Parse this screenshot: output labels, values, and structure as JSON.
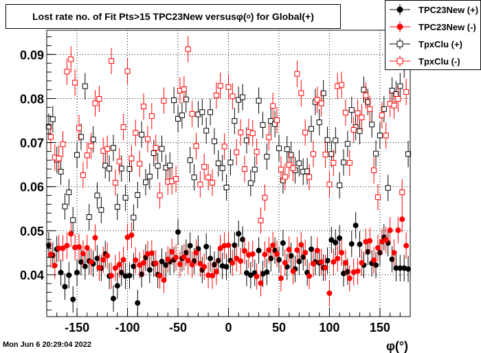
{
  "title_prefix": "Lost rate no. of Fit Pts>15 TPC23New versus ",
  "title_phi": "φ",
  "title_degree": "o",
  "title_suffix": ") for Global(+)",
  "footer": "Mon Jun  6 20:29:04 2022",
  "colors": {
    "black": "#000000",
    "red": "#ff0000"
  },
  "chart_data": {
    "type": "scatter",
    "xlabel": "φ(°)",
    "ylabel": "",
    "xlim": [
      -180,
      180
    ],
    "ylim": [
      0.0305,
      0.0955
    ],
    "x_ticks": [
      -150,
      -100,
      -50,
      0,
      50,
      100,
      150
    ],
    "y_ticks": [
      0.04,
      0.05,
      0.06,
      0.07,
      0.08,
      0.09
    ],
    "y_tick_labels": [
      "0.04",
      "0.05",
      "0.06",
      "0.07",
      "0.08",
      "0.09"
    ],
    "grid": true,
    "legend_position": "top-right",
    "series": [
      {
        "name": "TPC23New (+)",
        "marker": "filled-circle",
        "color": "#000000",
        "x": [
          -178,
          -174,
          -170,
          -166,
          -162,
          -158,
          -154,
          -150,
          -146,
          -142,
          -138,
          -134,
          -130,
          -126,
          -122,
          -118,
          -114,
          -110,
          -106,
          -102,
          -98,
          -94,
          -90,
          -86,
          -82,
          -78,
          -74,
          -70,
          -66,
          -62,
          -58,
          -54,
          -50,
          -46,
          -42,
          -38,
          -34,
          -30,
          -26,
          -22,
          -18,
          -14,
          -10,
          -6,
          -2,
          2,
          6,
          10,
          14,
          18,
          22,
          26,
          30,
          34,
          38,
          42,
          46,
          50,
          54,
          58,
          62,
          66,
          70,
          74,
          78,
          82,
          86,
          90,
          94,
          98,
          102,
          106,
          110,
          114,
          118,
          122,
          126,
          130,
          134,
          138,
          142,
          146,
          150,
          154,
          158,
          162,
          166,
          170,
          174,
          178
        ],
        "y": [
          0.0467,
          0.0444,
          0.0458,
          0.0405,
          0.0373,
          0.0399,
          0.0344,
          0.0405,
          0.0429,
          0.0419,
          0.0431,
          0.0425,
          0.0437,
          0.0415,
          0.0447,
          0.0397,
          0.0346,
          0.0375,
          0.0405,
          0.0397,
          0.0398,
          0.0419,
          0.0336,
          0.0401,
          0.0439,
          0.0411,
          0.0425,
          0.04,
          0.043,
          0.0422,
          0.043,
          0.0434,
          0.0497,
          0.0437,
          0.045,
          0.0466,
          0.0431,
          0.0459,
          0.0411,
          0.0464,
          0.0437,
          0.0423,
          0.0432,
          0.042,
          0.0418,
          0.0432,
          0.0467,
          0.0493,
          0.048,
          0.0404,
          0.0399,
          0.0404,
          0.0455,
          0.0402,
          0.0406,
          0.0437,
          0.0455,
          0.0434,
          0.0472,
          0.0418,
          0.0443,
          0.0413,
          0.043,
          0.044,
          0.0405,
          0.0458,
          0.0429,
          0.0427,
          0.0416,
          0.0432,
          0.0479,
          0.0473,
          0.0483,
          0.0403,
          0.0407,
          0.047,
          0.0512,
          0.0469,
          0.0422,
          0.0452,
          0.0426,
          0.0422,
          0.045,
          0.0485,
          0.0472,
          0.0435,
          0.0415,
          0.0415,
          0.0415,
          0.0413
        ]
      },
      {
        "name": "TPC23New (-)",
        "marker": "filled-circle",
        "color": "#ff0000",
        "x": [
          -176,
          -172,
          -168,
          -164,
          -160,
          -156,
          -152,
          -148,
          -144,
          -140,
          -136,
          -132,
          -128,
          -124,
          -120,
          -116,
          -112,
          -108,
          -104,
          -100,
          -96,
          -92,
          -88,
          -84,
          -80,
          -76,
          -72,
          -68,
          -64,
          -60,
          -56,
          -52,
          -48,
          -44,
          -40,
          -36,
          -32,
          -28,
          -24,
          -20,
          -16,
          -12,
          -8,
          -4,
          0,
          4,
          8,
          12,
          16,
          20,
          24,
          28,
          32,
          36,
          40,
          44,
          48,
          52,
          56,
          60,
          64,
          68,
          72,
          76,
          80,
          84,
          88,
          92,
          96,
          100,
          104,
          108,
          112,
          116,
          120,
          124,
          128,
          132,
          136,
          140,
          144,
          148,
          152,
          156,
          160,
          164,
          168,
          172,
          176
        ],
        "y": [
          0.0446,
          0.0421,
          0.046,
          0.046,
          0.0466,
          0.0493,
          0.0462,
          0.0463,
          0.0448,
          0.0461,
          0.0429,
          0.0484,
          0.0416,
          0.0434,
          0.0443,
          0.0398,
          0.0415,
          0.0423,
          0.0434,
          0.0485,
          0.049,
          0.0433,
          0.0422,
          0.0427,
          0.0447,
          0.0449,
          0.0426,
          0.0398,
          0.0388,
          0.0435,
          0.0452,
          0.0439,
          0.0424,
          0.044,
          0.0432,
          0.0423,
          0.045,
          0.0425,
          0.0418,
          0.0399,
          0.0398,
          0.0407,
          0.046,
          0.0466,
          0.0467,
          0.0427,
          0.0437,
          0.0431,
          0.0454,
          0.0445,
          0.0447,
          0.0396,
          0.0381,
          0.0446,
          0.0456,
          0.0467,
          0.0447,
          0.0392,
          0.0427,
          0.0457,
          0.0408,
          0.0456,
          0.0468,
          0.045,
          0.0397,
          0.0425,
          0.0455,
          0.0429,
          0.0416,
          0.0358,
          0.0429,
          0.0437,
          0.045,
          0.0427,
          0.0392,
          0.0406,
          0.0408,
          0.0427,
          0.0475,
          0.0477,
          0.0433,
          0.0461,
          0.0475,
          0.0479,
          0.0501,
          0.045,
          0.0501,
          0.0526,
          0.0466
        ]
      },
      {
        "name": "TpxClu (+)",
        "marker": "open-square",
        "color": "#000000",
        "x": [
          -178,
          -174,
          -170,
          -166,
          -162,
          -158,
          -154,
          -150,
          -146,
          -142,
          -138,
          -134,
          -130,
          -126,
          -122,
          -118,
          -114,
          -110,
          -106,
          -102,
          -98,
          -94,
          -90,
          -86,
          -82,
          -78,
          -74,
          -70,
          -66,
          -62,
          -58,
          -54,
          -50,
          -46,
          -42,
          -38,
          -34,
          -30,
          -26,
          -22,
          -18,
          -14,
          -10,
          -6,
          -2,
          2,
          6,
          10,
          14,
          18,
          22,
          26,
          30,
          34,
          38,
          42,
          46,
          50,
          54,
          58,
          62,
          66,
          70,
          74,
          78,
          82,
          86,
          90,
          94,
          98,
          102,
          106,
          110,
          114,
          118,
          122,
          126,
          130,
          134,
          138,
          142,
          146,
          150,
          154,
          158,
          162,
          166,
          170,
          174,
          178
        ],
        "y": [
          0.0736,
          0.0753,
          0.0661,
          0.0634,
          0.0555,
          0.0587,
          0.0524,
          0.0672,
          0.0713,
          0.0828,
          0.0531,
          0.0707,
          0.058,
          0.0547,
          0.0648,
          0.0641,
          0.0688,
          0.0554,
          0.0641,
          0.0575,
          0.064,
          0.053,
          0.0581,
          0.0718,
          0.061,
          0.0623,
          0.0676,
          0.0647,
          0.0686,
          0.0643,
          0.0648,
          0.0796,
          0.0754,
          0.0762,
          0.0798,
          0.066,
          0.0621,
          0.0764,
          0.0769,
          0.0727,
          0.0769,
          0.0703,
          0.0653,
          0.0642,
          0.0598,
          0.0655,
          0.0749,
          0.0797,
          0.0803,
          0.0705,
          0.0608,
          0.0639,
          0.0795,
          0.074,
          0.0668,
          0.0749,
          0.0742,
          0.0687,
          0.0614,
          0.0685,
          0.0672,
          0.0637,
          0.0653,
          0.0634,
          0.0635,
          0.0731,
          0.0792,
          0.0746,
          0.0812,
          0.0706,
          0.0674,
          0.0705,
          0.0603,
          0.0655,
          0.0697,
          0.0774,
          0.0735,
          0.0726,
          0.082,
          0.0792,
          0.0741,
          0.0675,
          0.0716,
          0.0776,
          0.0597,
          0.0818,
          0.081,
          0.0828,
          0.0877,
          0.0674
        ]
      },
      {
        "name": "TpxClu (-)",
        "marker": "open-square",
        "color": "#ff0000",
        "x": [
          -176,
          -172,
          -168,
          -164,
          -160,
          -156,
          -152,
          -148,
          -144,
          -140,
          -136,
          -132,
          -128,
          -124,
          -120,
          -116,
          -112,
          -108,
          -104,
          -100,
          -96,
          -92,
          -88,
          -84,
          -80,
          -76,
          -72,
          -68,
          -64,
          -60,
          -56,
          -52,
          -48,
          -44,
          -40,
          -36,
          -32,
          -28,
          -24,
          -20,
          -16,
          -12,
          -8,
          -4,
          0,
          4,
          8,
          12,
          16,
          20,
          24,
          28,
          32,
          36,
          40,
          44,
          48,
          52,
          56,
          60,
          64,
          68,
          72,
          76,
          80,
          84,
          88,
          92,
          96,
          100,
          104,
          108,
          112,
          116,
          120,
          124,
          128,
          132,
          136,
          140,
          144,
          148,
          152,
          156,
          160,
          164,
          168,
          172,
          176
        ],
        "y": [
          0.0713,
          0.0666,
          0.0664,
          0.0696,
          0.0861,
          0.0889,
          0.0836,
          0.0733,
          0.0626,
          0.0671,
          0.0692,
          0.0789,
          0.0799,
          0.0681,
          0.0686,
          0.0885,
          0.0609,
          0.0657,
          0.0735,
          0.0862,
          0.0664,
          0.0722,
          0.0652,
          0.0782,
          0.0708,
          0.076,
          0.0688,
          0.058,
          0.0795,
          0.0611,
          0.0612,
          0.0617,
          0.0818,
          0.0821,
          0.0912,
          0.0765,
          0.0692,
          0.0605,
          0.0645,
          0.0621,
          0.0609,
          0.0807,
          0.0829,
          0.0691,
          0.0826,
          0.0805,
          0.0678,
          0.0723,
          0.064,
          0.0724,
          0.0721,
          0.0679,
          0.0523,
          0.0575,
          0.0712,
          0.0783,
          0.0751,
          0.0639,
          0.0622,
          0.0649,
          0.0642,
          0.0856,
          0.0812,
          0.0723,
          0.0622,
          0.0674,
          0.0797,
          0.0789,
          0.0673,
          0.0605,
          0.0654,
          0.0828,
          0.0831,
          0.0768,
          0.0654,
          0.0729,
          0.0767,
          0.0757,
          0.0807,
          0.0776,
          0.0637,
          0.0576,
          0.0762,
          0.0716,
          0.0788,
          0.0784,
          0.0799,
          0.0587,
          0.0815
        ]
      }
    ]
  }
}
